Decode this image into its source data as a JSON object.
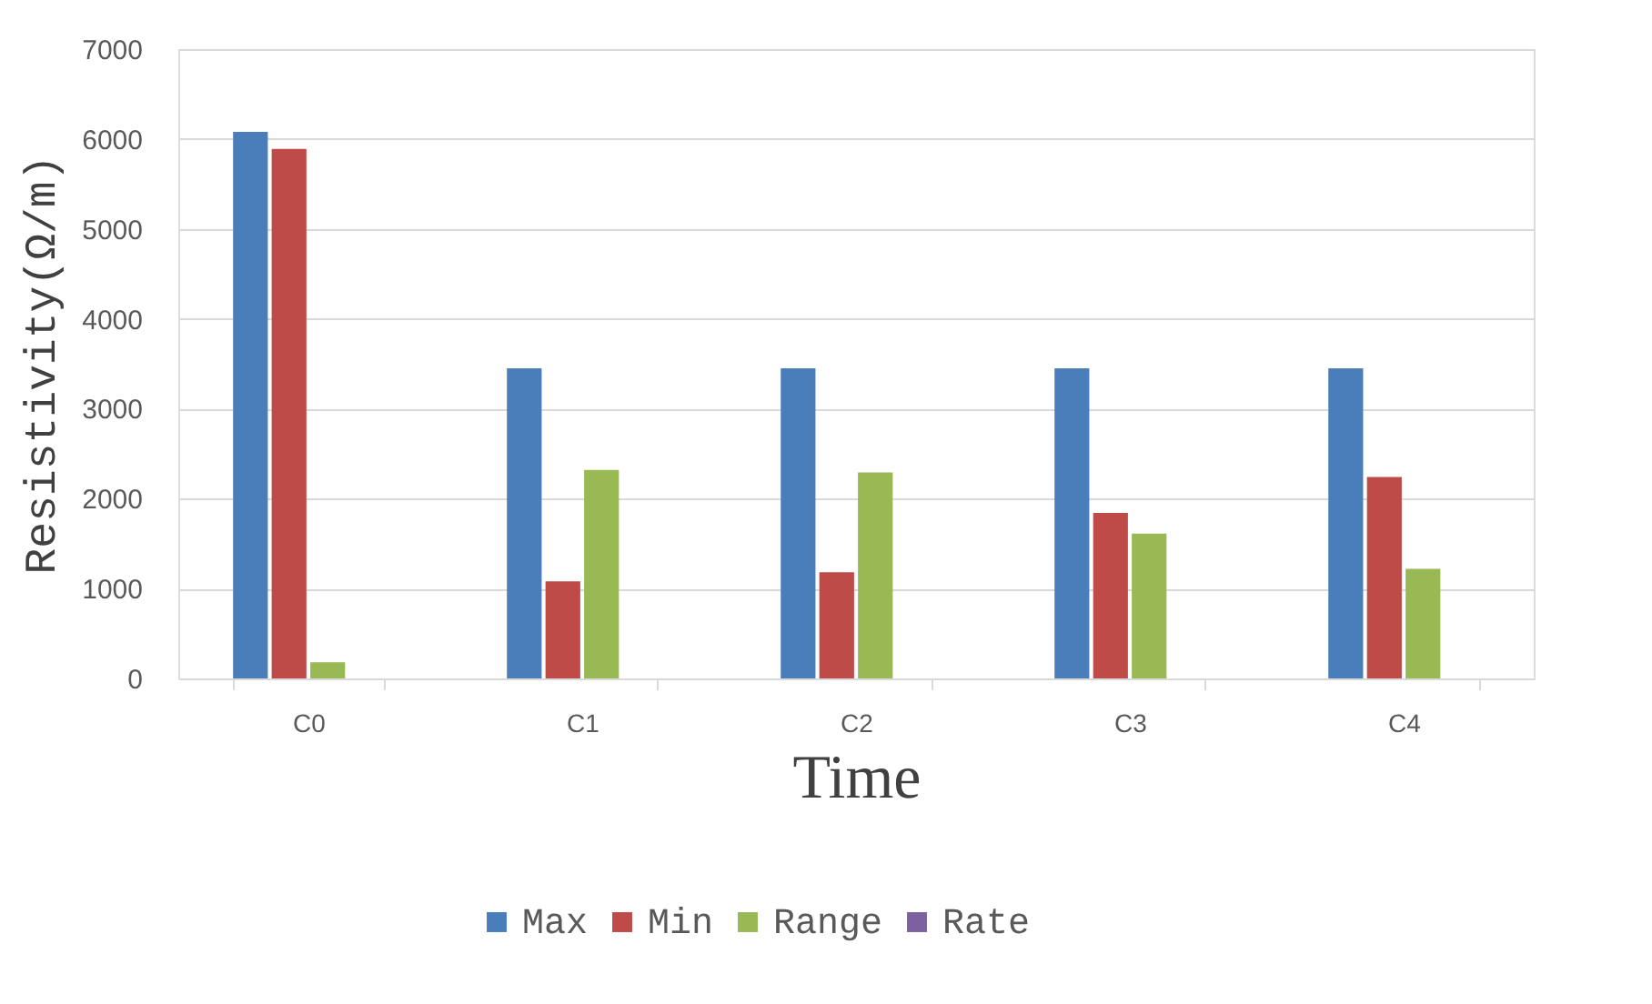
{
  "chart_data": {
    "type": "bar",
    "xlabel": "Time",
    "ylabel": "Resistivity(Ω/m)",
    "categories": [
      "C0",
      "C1",
      "C2",
      "C3",
      "C4"
    ],
    "series": [
      {
        "name": "Max",
        "color": "#4a7ebb",
        "values": [
          6080,
          3450,
          3450,
          3450,
          3450
        ]
      },
      {
        "name": "Min",
        "color": "#be4b48",
        "values": [
          5890,
          1080,
          1180,
          1840,
          2240
        ]
      },
      {
        "name": "Range",
        "color": "#98b954",
        "values": [
          180,
          2320,
          2290,
          1610,
          1220
        ]
      },
      {
        "name": "Rate",
        "color": "#7d60a0",
        "values": [
          null,
          null,
          null,
          null,
          null
        ]
      }
    ],
    "ylim": [
      0,
      7000
    ],
    "yticks": [
      0,
      1000,
      2000,
      3000,
      4000,
      5000,
      6000,
      7000
    ],
    "grid": "y",
    "legend": "bottom"
  }
}
